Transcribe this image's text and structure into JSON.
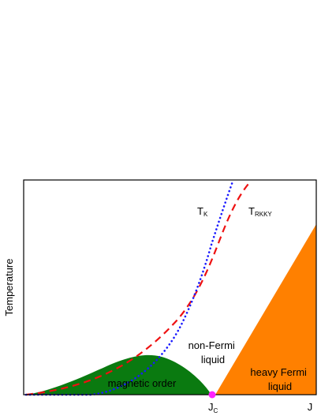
{
  "diagram": {
    "ylabel": "Temperature",
    "x_end_label": "J",
    "critical_point": {
      "main": "J",
      "sub": "C"
    },
    "curves": [
      {
        "id": "tk",
        "label_main": "T",
        "label_sub": "K",
        "style": "dotted",
        "color": "#1a1aff"
      },
      {
        "id": "trkky",
        "label_main": "T",
        "label_sub": "RKKY",
        "style": "dashed",
        "color": "#ee1111"
      }
    ],
    "regions": [
      {
        "id": "magnetic-order",
        "lines": [
          "magnetic order"
        ],
        "color": "#0a7a10"
      },
      {
        "id": "non-fermi-liquid",
        "lines": [
          "non-Fermi",
          "liquid"
        ],
        "color": "#ffffff"
      },
      {
        "id": "heavy-fermi-liquid",
        "lines": [
          "heavy Fermi",
          "liquid"
        ],
        "color": "#ff8000"
      }
    ],
    "critical_point_color": "#ff22ff"
  }
}
